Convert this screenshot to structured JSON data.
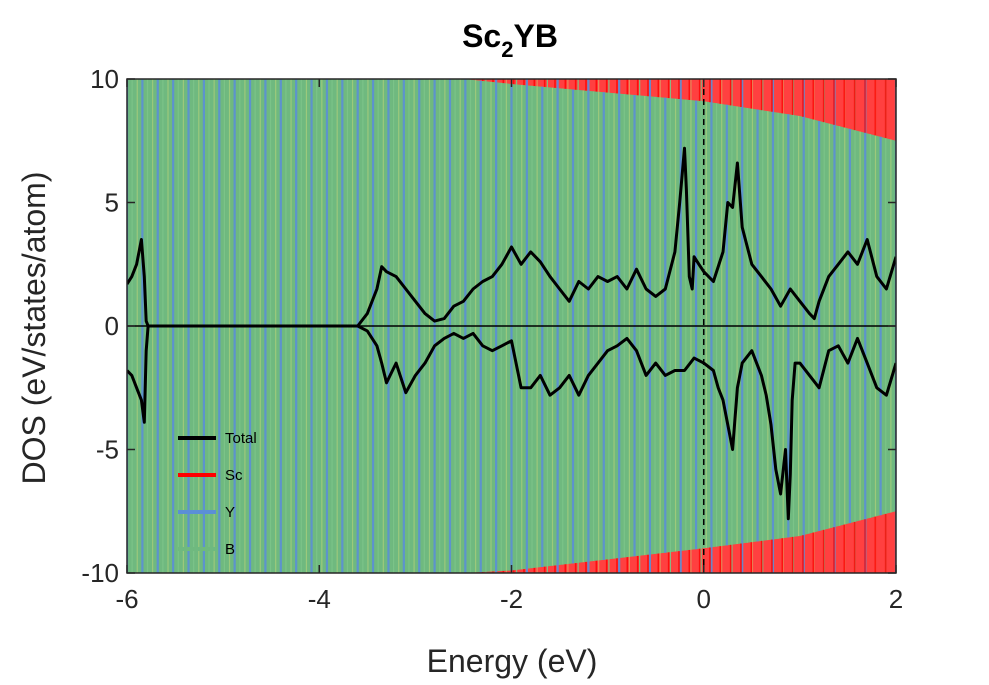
{
  "chart_data": {
    "type": "line",
    "title_main": "Sc",
    "title_sub": "2",
    "title_rest": "YB",
    "xlabel": "Energy (eV)",
    "ylabel": "DOS (eV/states/atom)",
    "xlim": [
      -6,
      2
    ],
    "ylim": [
      -10,
      10
    ],
    "xticks": [
      -6,
      -4,
      -2,
      0,
      2
    ],
    "yticks": [
      -10,
      -5,
      0,
      5,
      10
    ],
    "xtick_labels": [
      "-6",
      "-4",
      "-2",
      "0",
      "2"
    ],
    "ytick_labels": [
      "-10",
      "-5",
      "0",
      "5",
      "10"
    ],
    "fermi_level": 0,
    "grid": false,
    "legend_position": "bottom-left",
    "colors": {
      "total": "#000000",
      "sc": "#ff0000",
      "y": "#5b8fd6",
      "b": "#6fb97f"
    },
    "series": [
      {
        "name": "Total",
        "x_up": [
          -6.0,
          -5.95,
          -5.9,
          -5.85,
          -5.82,
          -5.8,
          -5.78,
          -5.75,
          -5.7,
          -3.6,
          -3.5,
          -3.4,
          -3.35,
          -3.3,
          -3.2,
          -3.1,
          -3.0,
          -2.9,
          -2.8,
          -2.7,
          -2.6,
          -2.5,
          -2.4,
          -2.3,
          -2.2,
          -2.1,
          -2.0,
          -1.9,
          -1.8,
          -1.7,
          -1.6,
          -1.5,
          -1.4,
          -1.3,
          -1.2,
          -1.1,
          -1.0,
          -0.9,
          -0.8,
          -0.7,
          -0.6,
          -0.5,
          -0.4,
          -0.3,
          -0.25,
          -0.2,
          -0.18,
          -0.15,
          -0.12,
          -0.1,
          -0.05,
          0.0,
          0.1,
          0.2,
          0.25,
          0.3,
          0.35,
          0.4,
          0.5,
          0.6,
          0.7,
          0.8,
          0.9,
          1.0,
          1.1,
          1.15,
          1.2,
          1.3,
          1.4,
          1.5,
          1.6,
          1.7,
          1.8,
          1.9,
          2.0
        ],
        "y_up": [
          1.7,
          2.0,
          2.5,
          3.5,
          2.0,
          0.2,
          0.0,
          0.0,
          0.0,
          0.0,
          0.5,
          1.5,
          2.4,
          2.2,
          2.0,
          1.5,
          1.0,
          0.5,
          0.2,
          0.3,
          0.8,
          1.0,
          1.5,
          1.8,
          2.0,
          2.5,
          3.2,
          2.5,
          3.0,
          2.6,
          2.0,
          1.5,
          1.0,
          1.8,
          1.5,
          2.0,
          1.8,
          2.0,
          1.5,
          2.3,
          1.5,
          1.2,
          1.5,
          3.0,
          5.0,
          7.2,
          5.5,
          2.0,
          1.5,
          2.8,
          2.5,
          2.2,
          1.8,
          3.0,
          5.0,
          4.8,
          6.6,
          4.0,
          2.5,
          2.0,
          1.5,
          0.8,
          1.5,
          1.0,
          0.5,
          0.3,
          1.0,
          2.0,
          2.5,
          3.0,
          2.5,
          3.5,
          2.0,
          1.5,
          2.8
        ],
        "x_down": [
          -6.0,
          -5.95,
          -5.9,
          -5.85,
          -5.82,
          -5.8,
          -5.78,
          -5.75,
          -5.7,
          -3.6,
          -3.5,
          -3.4,
          -3.35,
          -3.3,
          -3.2,
          -3.1,
          -3.0,
          -2.9,
          -2.8,
          -2.7,
          -2.6,
          -2.5,
          -2.4,
          -2.3,
          -2.2,
          -2.1,
          -2.0,
          -1.9,
          -1.8,
          -1.7,
          -1.6,
          -1.5,
          -1.4,
          -1.3,
          -1.2,
          -1.1,
          -1.0,
          -0.9,
          -0.8,
          -0.7,
          -0.6,
          -0.5,
          -0.4,
          -0.3,
          -0.2,
          -0.1,
          0.0,
          0.1,
          0.15,
          0.2,
          0.25,
          0.3,
          0.35,
          0.4,
          0.5,
          0.6,
          0.65,
          0.7,
          0.75,
          0.8,
          0.85,
          0.88,
          0.9,
          0.92,
          0.95,
          1.0,
          1.1,
          1.2,
          1.3,
          1.4,
          1.5,
          1.6,
          1.7,
          1.8,
          1.9,
          2.0
        ],
        "y_down": [
          -1.8,
          -2.0,
          -2.5,
          -3.0,
          -3.9,
          -1.0,
          0.0,
          0.0,
          0.0,
          0.0,
          -0.2,
          -0.8,
          -1.5,
          -2.3,
          -1.5,
          -2.7,
          -2.0,
          -1.5,
          -0.8,
          -0.5,
          -0.3,
          -0.5,
          -0.3,
          -0.8,
          -1.0,
          -0.8,
          -0.6,
          -2.5,
          -2.5,
          -2.0,
          -2.8,
          -2.5,
          -2.0,
          -2.8,
          -2.0,
          -1.5,
          -1.0,
          -0.8,
          -0.5,
          -1.0,
          -2.0,
          -1.5,
          -2.0,
          -1.8,
          -1.8,
          -1.3,
          -1.5,
          -1.8,
          -2.5,
          -3.0,
          -4.0,
          -5.0,
          -2.5,
          -1.5,
          -1.0,
          -2.0,
          -2.8,
          -4.0,
          -5.8,
          -6.8,
          -5.0,
          -7.8,
          -6.0,
          -3.0,
          -1.5,
          -1.5,
          -2.0,
          -2.5,
          -1.0,
          -0.8,
          -1.5,
          -0.5,
          -1.5,
          -2.5,
          -2.8,
          -1.5
        ]
      },
      {
        "name": "Sc",
        "x_up": [
          -6.0,
          -4.0,
          -2.0,
          0.0,
          1.0,
          2.0
        ],
        "y_up": [
          10.0,
          10.0,
          10.0,
          10.0,
          10.0,
          10.0
        ],
        "x_down": [
          -6.0,
          -4.0,
          -2.0,
          0.0,
          1.0,
          2.0
        ],
        "y_down": [
          -10.0,
          -10.0,
          -10.0,
          -10.0,
          -10.0,
          -10.0
        ]
      },
      {
        "name": "Y",
        "x_up": [
          -6.0,
          -4.0,
          -2.0,
          0.0,
          1.0,
          2.0
        ],
        "y_up": [
          10.0,
          10.0,
          10.0,
          10.0,
          10.0,
          10.0
        ],
        "x_down": [
          -6.0,
          -4.0,
          -2.0,
          0.0,
          1.0,
          2.0
        ],
        "y_down": [
          -10.0,
          -10.0,
          -10.0,
          -10.0,
          -10.0,
          -10.0
        ]
      },
      {
        "name": "B",
        "x_up": [
          -6.0,
          -4.0,
          -2.5,
          -2.0,
          0.0,
          1.0,
          2.0
        ],
        "y_up": [
          10.0,
          10.0,
          10.0,
          9.8,
          9.1,
          8.5,
          7.5
        ],
        "x_down": [
          -6.0,
          -4.0,
          -2.5,
          -2.0,
          0.0,
          1.0,
          2.0
        ],
        "y_down": [
          -10.0,
          -10.0,
          -10.0,
          -9.9,
          -9.0,
          -8.5,
          -7.5
        ]
      }
    ]
  }
}
